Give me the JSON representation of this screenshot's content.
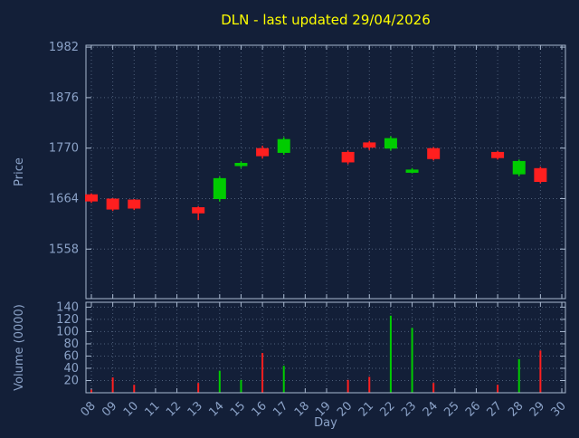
{
  "colors": {
    "background": "#131f38",
    "title": "#ffff00",
    "axis": "#8ba2c7",
    "grid": "#4e5f7a",
    "frame": "#a8b8cf",
    "up": "#00cc00",
    "down": "#ff1f1f"
  },
  "chart_data": [
    {
      "type": "candlestick",
      "title": "DLN - last updated 29/04/2026",
      "ylabel": "Price",
      "ylim": [
        1454,
        1986
      ],
      "yticks": [
        1558,
        1664,
        1770,
        1876,
        1982
      ],
      "x_days_range": [
        8,
        30
      ],
      "x_ticklabels": [
        "08",
        "09",
        "10",
        "11",
        "12",
        "13",
        "14",
        "15",
        "16",
        "17",
        "18",
        "19",
        "20",
        "21",
        "22",
        "23",
        "24",
        "25",
        "26",
        "27",
        "28",
        "29",
        "30"
      ],
      "grid": "dotted",
      "candles": [
        {
          "day": 8,
          "open": 1672,
          "high": 1675,
          "low": 1655,
          "close": 1659
        },
        {
          "day": 9,
          "open": 1663,
          "high": 1665,
          "low": 1638,
          "close": 1642
        },
        {
          "day": 10,
          "open": 1661,
          "high": 1663,
          "low": 1640,
          "close": 1644
        },
        {
          "day": 13,
          "open": 1645,
          "high": 1648,
          "low": 1619,
          "close": 1634
        },
        {
          "day": 14,
          "open": 1664,
          "high": 1710,
          "low": 1658,
          "close": 1706
        },
        {
          "day": 15,
          "open": 1736,
          "high": 1742,
          "low": 1728,
          "close": 1738
        },
        {
          "day": 16,
          "open": 1769,
          "high": 1775,
          "low": 1748,
          "close": 1754
        },
        {
          "day": 17,
          "open": 1761,
          "high": 1793,
          "low": 1756,
          "close": 1788
        },
        {
          "day": 20,
          "open": 1761,
          "high": 1765,
          "low": 1736,
          "close": 1741
        },
        {
          "day": 21,
          "open": 1781,
          "high": 1785,
          "low": 1766,
          "close": 1772
        },
        {
          "day": 22,
          "open": 1770,
          "high": 1795,
          "low": 1765,
          "close": 1790
        },
        {
          "day": 23,
          "open": 1722,
          "high": 1728,
          "low": 1717,
          "close": 1724
        },
        {
          "day": 24,
          "open": 1769,
          "high": 1772,
          "low": 1744,
          "close": 1748
        },
        {
          "day": 27,
          "open": 1761,
          "high": 1764,
          "low": 1746,
          "close": 1750
        },
        {
          "day": 28,
          "open": 1716,
          "high": 1746,
          "low": 1711,
          "close": 1742
        },
        {
          "day": 29,
          "open": 1727,
          "high": 1731,
          "low": 1696,
          "close": 1700
        }
      ]
    },
    {
      "type": "bar",
      "ylabel": "Volume (0000)",
      "xlabel": "Day",
      "ylim": [
        0,
        148
      ],
      "yticks": [
        20,
        40,
        60,
        80,
        100,
        120,
        140
      ],
      "bars": [
        {
          "day": 8,
          "value": 5,
          "dir": "down"
        },
        {
          "day": 9,
          "value": 25,
          "dir": "down"
        },
        {
          "day": 10,
          "value": 13,
          "dir": "down"
        },
        {
          "day": 13,
          "value": 16,
          "dir": "down"
        },
        {
          "day": 14,
          "value": 36,
          "dir": "up"
        },
        {
          "day": 15,
          "value": 21,
          "dir": "up"
        },
        {
          "day": 16,
          "value": 65,
          "dir": "down"
        },
        {
          "day": 17,
          "value": 44,
          "dir": "up"
        },
        {
          "day": 20,
          "value": 21,
          "dir": "down"
        },
        {
          "day": 21,
          "value": 26,
          "dir": "down"
        },
        {
          "day": 22,
          "value": 126,
          "dir": "up"
        },
        {
          "day": 23,
          "value": 106,
          "dir": "up"
        },
        {
          "day": 24,
          "value": 16,
          "dir": "down"
        },
        {
          "day": 27,
          "value": 13,
          "dir": "down"
        },
        {
          "day": 28,
          "value": 55,
          "dir": "up"
        },
        {
          "day": 29,
          "value": 69,
          "dir": "down"
        }
      ]
    }
  ]
}
